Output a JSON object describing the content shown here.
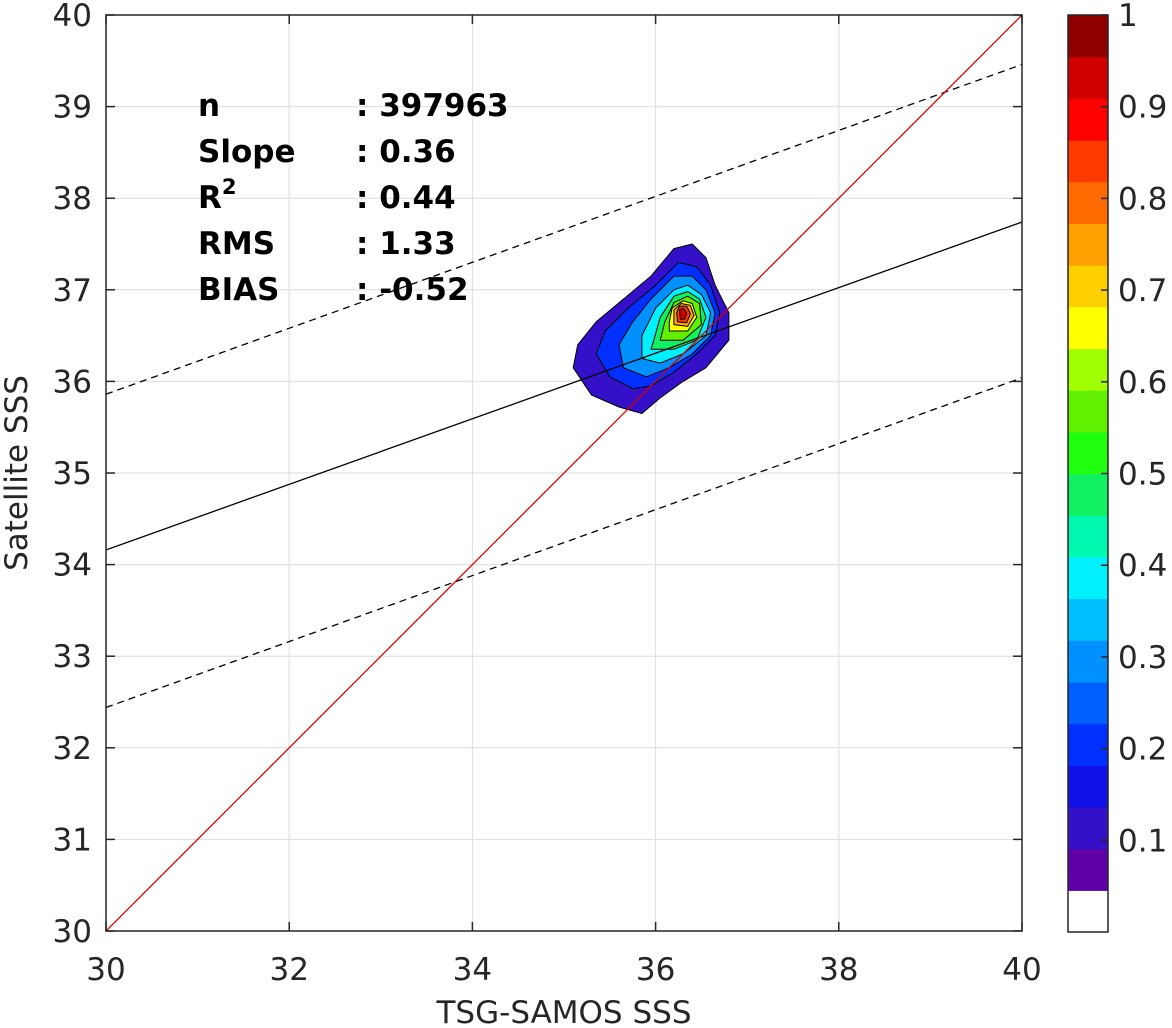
{
  "chart_data": {
    "type": "density-contour-scatter",
    "xlabel": "TSG-SAMOS SSS",
    "ylabel": "Satellite SSS",
    "xlim": [
      30,
      40
    ],
    "ylim": [
      30,
      40
    ],
    "xticks": [
      30,
      32,
      34,
      36,
      38,
      40
    ],
    "yticks": [
      30,
      31,
      32,
      33,
      34,
      35,
      36,
      37,
      38,
      39,
      40
    ],
    "grid": true,
    "stats": [
      {
        "label": "n",
        "value": ": 397963"
      },
      {
        "label": "Slope",
        "value": ": 0.36"
      },
      {
        "label": "R",
        "sup": "2",
        "value": ": 0.44"
      },
      {
        "label": "RMS",
        "value": ": 1.33"
      },
      {
        "label": "BIAS",
        "value": ": -0.52"
      }
    ],
    "lines": {
      "one_to_one": {
        "x": [
          30,
          40
        ],
        "y": [
          30,
          40
        ],
        "color": "#d40000"
      },
      "regression": {
        "x": [
          30,
          40
        ],
        "y": [
          34.16,
          37.74
        ],
        "color": "#000000"
      },
      "upper_bound": {
        "x": [
          30,
          40
        ],
        "y": [
          35.86,
          39.46
        ],
        "color": "#000000",
        "dash": true
      },
      "lower_bound": {
        "x": [
          30,
          40
        ],
        "y": [
          32.44,
          36.04
        ],
        "color": "#000000",
        "dash": true
      }
    },
    "density": {
      "peak": [
        36.3,
        36.75
      ],
      "contour_levels": [
        0.05,
        0.15,
        0.25,
        0.35,
        0.45,
        0.55,
        0.65,
        0.75,
        0.85,
        0.95
      ],
      "contours": [
        [
          [
            35.3,
            35.85
          ],
          [
            35.6,
            35.72
          ],
          [
            35.85,
            35.65
          ],
          [
            36.05,
            35.82
          ],
          [
            36.3,
            36.0
          ],
          [
            36.55,
            36.15
          ],
          [
            36.8,
            36.45
          ],
          [
            36.8,
            36.75
          ],
          [
            36.65,
            37.05
          ],
          [
            36.55,
            37.35
          ],
          [
            36.4,
            37.5
          ],
          [
            36.2,
            37.45
          ],
          [
            35.95,
            37.15
          ],
          [
            35.65,
            36.9
          ],
          [
            35.35,
            36.65
          ],
          [
            35.15,
            36.4
          ],
          [
            35.1,
            36.15
          ]
        ],
        [
          [
            35.5,
            36.05
          ],
          [
            35.75,
            35.92
          ],
          [
            35.95,
            35.95
          ],
          [
            36.2,
            36.1
          ],
          [
            36.45,
            36.3
          ],
          [
            36.65,
            36.5
          ],
          [
            36.7,
            36.75
          ],
          [
            36.6,
            37.05
          ],
          [
            36.45,
            37.25
          ],
          [
            36.25,
            37.3
          ],
          [
            36.0,
            37.05
          ],
          [
            35.7,
            36.8
          ],
          [
            35.45,
            36.55
          ],
          [
            35.35,
            36.3
          ]
        ],
        [
          [
            35.65,
            36.15
          ],
          [
            35.9,
            36.05
          ],
          [
            36.15,
            36.15
          ],
          [
            36.4,
            36.3
          ],
          [
            36.6,
            36.5
          ],
          [
            36.65,
            36.75
          ],
          [
            36.55,
            37.0
          ],
          [
            36.4,
            37.15
          ],
          [
            36.2,
            37.15
          ],
          [
            35.95,
            36.9
          ],
          [
            35.75,
            36.65
          ],
          [
            35.6,
            36.4
          ]
        ],
        [
          [
            35.85,
            36.25
          ],
          [
            36.05,
            36.2
          ],
          [
            36.3,
            36.3
          ],
          [
            36.55,
            36.5
          ],
          [
            36.6,
            36.75
          ],
          [
            36.5,
            36.95
          ],
          [
            36.35,
            37.05
          ],
          [
            36.2,
            37.0
          ],
          [
            36.0,
            36.8
          ],
          [
            35.85,
            36.5
          ]
        ],
        [
          [
            35.95,
            36.35
          ],
          [
            36.2,
            36.35
          ],
          [
            36.45,
            36.45
          ],
          [
            36.55,
            36.7
          ],
          [
            36.48,
            36.9
          ],
          [
            36.35,
            36.98
          ],
          [
            36.2,
            36.93
          ],
          [
            36.05,
            36.7
          ],
          [
            35.98,
            36.45
          ]
        ],
        [
          [
            36.05,
            36.45
          ],
          [
            36.3,
            36.45
          ],
          [
            36.5,
            36.62
          ],
          [
            36.48,
            36.85
          ],
          [
            36.35,
            36.93
          ],
          [
            36.2,
            36.86
          ],
          [
            36.1,
            36.65
          ]
        ],
        [
          [
            36.15,
            36.55
          ],
          [
            36.35,
            36.55
          ],
          [
            36.45,
            36.7
          ],
          [
            36.4,
            36.85
          ],
          [
            36.3,
            36.88
          ],
          [
            36.18,
            36.8
          ],
          [
            36.15,
            36.65
          ]
        ],
        [
          [
            36.2,
            36.62
          ],
          [
            36.35,
            36.6
          ],
          [
            36.42,
            36.72
          ],
          [
            36.38,
            36.83
          ],
          [
            36.28,
            36.85
          ],
          [
            36.2,
            36.78
          ]
        ],
        [
          [
            36.24,
            36.65
          ],
          [
            36.34,
            36.64
          ],
          [
            36.38,
            36.74
          ],
          [
            36.34,
            36.82
          ],
          [
            36.26,
            36.82
          ],
          [
            36.23,
            36.75
          ]
        ],
        [
          [
            36.27,
            36.68
          ],
          [
            36.32,
            36.68
          ],
          [
            36.34,
            36.75
          ],
          [
            36.3,
            36.8
          ],
          [
            36.26,
            36.78
          ]
        ]
      ]
    },
    "colorbar": {
      "ticks": [
        0.1,
        0.2,
        0.3,
        0.4,
        0.5,
        0.6,
        0.7,
        0.8,
        0.9,
        1
      ],
      "tick_labels": [
        "0.1",
        "0.2",
        "0.3",
        "0.4",
        "0.5",
        "0.6",
        "0.7",
        "0.8",
        "0.9",
        "1"
      ],
      "range": [
        0,
        1
      ],
      "colors": [
        "#ffffff",
        "#5f00a8",
        "#3410c8",
        "#1010e8",
        "#0030ff",
        "#0060ff",
        "#0090ff",
        "#00bfff",
        "#00f0ff",
        "#00f8b0",
        "#10f060",
        "#20ff10",
        "#60f000",
        "#a0ff00",
        "#ffff00",
        "#ffd000",
        "#ffa000",
        "#ff6a00",
        "#ff3a00",
        "#ff0000",
        "#d00000",
        "#900000"
      ]
    }
  }
}
